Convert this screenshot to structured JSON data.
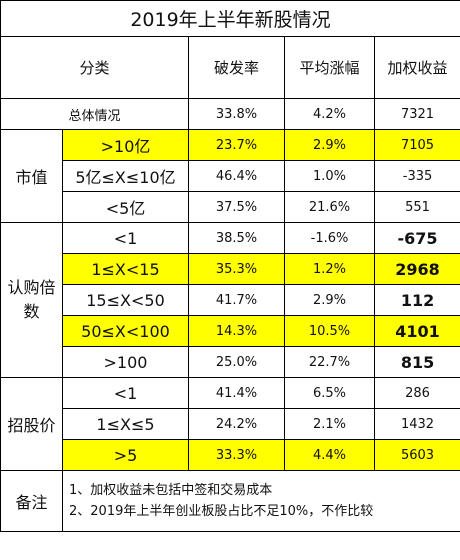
{
  "title": "2019年上半年新股情况",
  "header": {
    "category": "分类",
    "break_rate": "破发率",
    "avg_gain": "平均涨幅",
    "weighted_return": "加权收益"
  },
  "overall": {
    "label": "总体情况",
    "break_rate": "33.8%",
    "avg_gain": "4.2%",
    "weighted_return": "7321"
  },
  "market_cap": {
    "group": "市值",
    "rows": [
      {
        "label": ">10亿",
        "break_rate": "23.7%",
        "avg_gain": "2.9%",
        "weighted_return": "7105"
      },
      {
        "label": "5亿≤X≤10亿",
        "break_rate": "46.4%",
        "avg_gain": "1.0%",
        "weighted_return": "-335"
      },
      {
        "label": "<5亿",
        "break_rate": "37.5%",
        "avg_gain": "21.6%",
        "weighted_return": "551"
      }
    ]
  },
  "subscription": {
    "group": "认购倍数",
    "rows": [
      {
        "label": "<1",
        "break_rate": "38.5%",
        "avg_gain": "-1.6%",
        "weighted_return": "-675"
      },
      {
        "label": "1≤X<15",
        "break_rate": "35.3%",
        "avg_gain": "1.2%",
        "weighted_return": "2968"
      },
      {
        "label": "15≤X<50",
        "break_rate": "41.7%",
        "avg_gain": "2.9%",
        "weighted_return": "112"
      },
      {
        "label": "50≤X<100",
        "break_rate": "14.3%",
        "avg_gain": "10.5%",
        "weighted_return": "4101"
      },
      {
        "label": ">100",
        "break_rate": "25.0%",
        "avg_gain": "22.7%",
        "weighted_return": "815"
      }
    ]
  },
  "offer_price": {
    "group": "招股价",
    "rows": [
      {
        "label": "<1",
        "break_rate": "41.4%",
        "avg_gain": "6.5%",
        "weighted_return": "286"
      },
      {
        "label": "1≤X≤5",
        "break_rate": "24.2%",
        "avg_gain": "2.1%",
        "weighted_return": "1432"
      },
      {
        "label": ">5",
        "break_rate": "33.3%",
        "avg_gain": "4.4%",
        "weighted_return": "5603"
      }
    ]
  },
  "notes": {
    "label": "备注",
    "line1": "1、加权收益未包括中签和交易成本",
    "line2": "2、2019年上半年创业板股占比不足10%，不作比较"
  },
  "colors": {
    "highlight": "#ffff00",
    "border": "#000000"
  }
}
